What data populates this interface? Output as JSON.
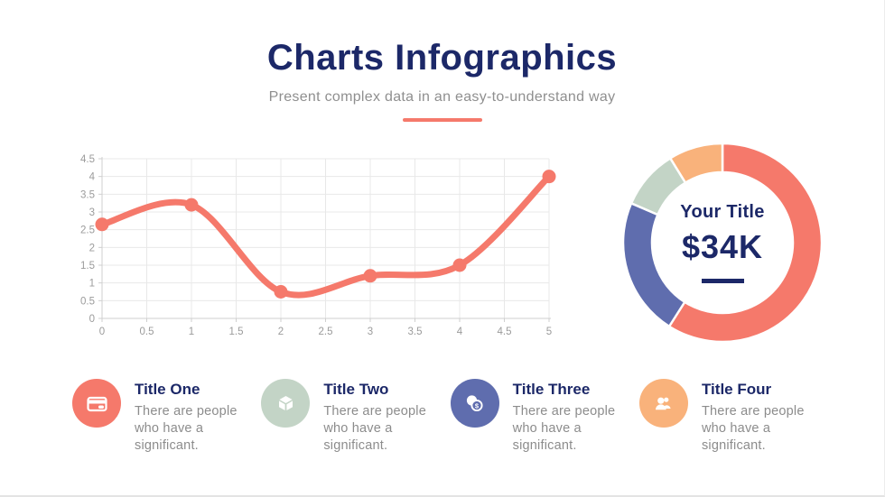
{
  "header": {
    "title": "Charts Infographics",
    "subtitle": "Present complex data in an easy-to-understand way"
  },
  "colors": {
    "navy": "#1C2868",
    "coral": "#F5796B",
    "purple": "#5F6DAE",
    "sage": "#C3D4C6",
    "peach": "#F9B27B",
    "text_gray": "#8C8C8C",
    "axis_gray": "#9B9B9B",
    "grid_gray": "#E8E8E8"
  },
  "chart_data": [
    {
      "type": "line",
      "x": [
        0,
        1,
        2,
        3,
        4,
        5
      ],
      "values": [
        2.65,
        3.2,
        0.75,
        1.2,
        1.5,
        4
      ],
      "x_ticks": [
        "0",
        "0.5",
        "1",
        "1.5",
        "2",
        "2.5",
        "3",
        "3.5",
        "4",
        "4.5",
        "5"
      ],
      "y_ticks": [
        "0",
        "0.5",
        "1",
        "1.5",
        "2",
        "2.5",
        "3",
        "3.5",
        "4",
        "4.5"
      ],
      "xlim": [
        0,
        5
      ],
      "ylim": [
        0,
        4.5
      ],
      "grid": true,
      "smooth": true,
      "line_color": "#F5796B",
      "marker": "circle"
    },
    {
      "type": "pie",
      "donut": true,
      "center_label": "Your Title",
      "center_value": "$34K",
      "legend_position": "none",
      "segments": [
        {
          "name": "coral",
          "value": 59,
          "color": "#F5796B"
        },
        {
          "name": "purple",
          "value": 22.5,
          "color": "#5F6DAE"
        },
        {
          "name": "sage",
          "value": 9.7,
          "color": "#C3D4C6"
        },
        {
          "name": "peach",
          "value": 8.8,
          "color": "#F9B27B"
        }
      ]
    }
  ],
  "features": {
    "items": [
      {
        "title": "Title One",
        "description": "There are people who have a significant.",
        "color": "#F5796B",
        "icon": "credit-card-icon"
      },
      {
        "title": "Title Two",
        "description": "There are people who have a significant.",
        "color": "#C3D4C6",
        "icon": "cube-icon"
      },
      {
        "title": "Title Three",
        "description": "There are people who have a significant.",
        "color": "#5F6DAE",
        "icon": "coins-icon"
      },
      {
        "title": "Title Four",
        "description": "There are people who have a significant.",
        "color": "#F9B27B",
        "icon": "people-icon"
      }
    ]
  }
}
